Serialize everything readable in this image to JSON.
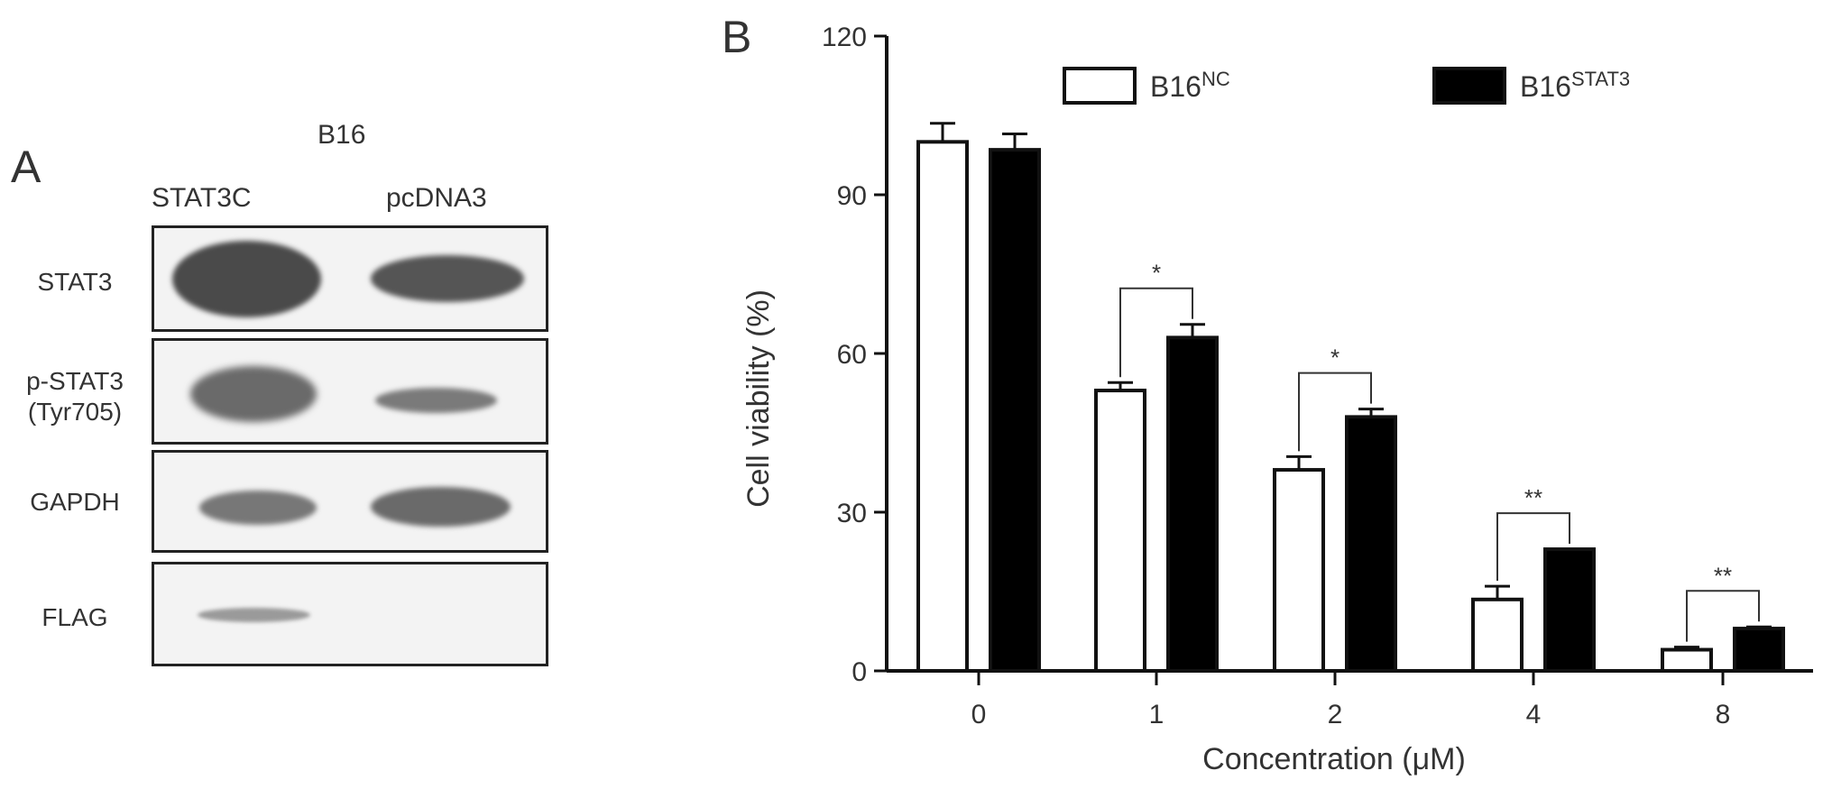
{
  "panel_a": {
    "letter": "A",
    "group_label": "B16",
    "lanes": [
      "STAT3C",
      "pcDNA3"
    ],
    "rows": [
      {
        "label": "STAT3",
        "label2": ""
      },
      {
        "label": "p-STAT3",
        "label2": "(Tyr705)"
      },
      {
        "label": "GAPDH",
        "label2": ""
      },
      {
        "label": "FLAG",
        "label2": ""
      }
    ]
  },
  "panel_b": {
    "letter": "B"
  },
  "chart_data": {
    "type": "bar",
    "xlabel": "Concentration (μM)",
    "ylabel": "Cell viability (%)",
    "ylim": [
      0,
      120
    ],
    "yticks": [
      0,
      30,
      60,
      90,
      120
    ],
    "categories": [
      "0",
      "1",
      "2",
      "4",
      "8"
    ],
    "series": [
      {
        "name": "B16",
        "name_sup": "NC",
        "fill": "#ffffff",
        "values": [
          100,
          53,
          38,
          13.5,
          4
        ],
        "errors": [
          3.5,
          1.5,
          2.5,
          2.5,
          0.5
        ]
      },
      {
        "name": "B16",
        "name_sup": "STAT3",
        "fill": "#000000",
        "values": [
          98.5,
          63,
          48,
          23,
          8
        ],
        "errors": [
          3,
          2.5,
          1.5,
          0,
          0.3
        ]
      }
    ],
    "significance": [
      {
        "category": "1",
        "label": "*"
      },
      {
        "category": "2",
        "label": "*"
      },
      {
        "category": "4",
        "label": "**"
      },
      {
        "category": "8",
        "label": "**"
      }
    ],
    "legend_position": "top"
  }
}
